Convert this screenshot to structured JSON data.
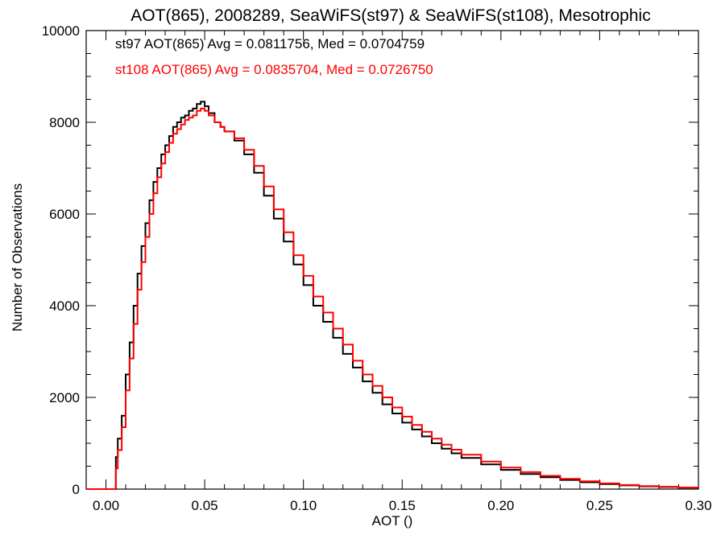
{
  "chart_data": {
    "type": "line",
    "title": "AOT(865), 2008289, SeaWiFS(st97) & SeaWiFS(st108), Mesotrophic",
    "xlabel": "AOT ()",
    "ylabel": "Number of Observations",
    "xlim": [
      -0.01,
      0.3
    ],
    "ylim": [
      0,
      10000
    ],
    "xticks": [
      0.0,
      0.05,
      0.1,
      0.15,
      0.2,
      0.25,
      0.3
    ],
    "xtick_labels": [
      "0.00",
      "0.05",
      "0.10",
      "0.15",
      "0.20",
      "0.25",
      "0.30"
    ],
    "yticks": [
      0,
      2000,
      4000,
      6000,
      8000,
      10000
    ],
    "ytick_labels": [
      "0",
      "2000",
      "4000",
      "6000",
      "8000",
      "10000"
    ],
    "grid": false,
    "legend_position": "top-left",
    "step_style": "histogram",
    "x": [
      -0.01,
      0.004,
      0.005,
      0.006,
      0.008,
      0.01,
      0.012,
      0.014,
      0.016,
      0.018,
      0.02,
      0.022,
      0.024,
      0.026,
      0.028,
      0.03,
      0.032,
      0.034,
      0.036,
      0.038,
      0.04,
      0.042,
      0.044,
      0.046,
      0.048,
      0.05,
      0.052,
      0.055,
      0.058,
      0.06,
      0.065,
      0.07,
      0.075,
      0.08,
      0.085,
      0.09,
      0.095,
      0.1,
      0.105,
      0.11,
      0.115,
      0.12,
      0.125,
      0.13,
      0.135,
      0.14,
      0.145,
      0.15,
      0.155,
      0.16,
      0.165,
      0.17,
      0.175,
      0.18,
      0.19,
      0.2,
      0.21,
      0.22,
      0.23,
      0.24,
      0.25,
      0.26,
      0.27,
      0.28,
      0.29,
      0.3
    ],
    "series": [
      {
        "name": "st97",
        "label": "st97 AOT(865) Avg = 0.0811756, Med = 0.0704759",
        "color": "#000000",
        "values": [
          0,
          0,
          700,
          1100,
          1600,
          2500,
          3200,
          4000,
          4700,
          5300,
          5800,
          6300,
          6700,
          7000,
          7300,
          7500,
          7700,
          7900,
          8000,
          8100,
          8150,
          8250,
          8300,
          8400,
          8450,
          8350,
          8200,
          8000,
          7900,
          7800,
          7600,
          7300,
          6900,
          6400,
          5900,
          5400,
          4900,
          4450,
          4000,
          3650,
          3300,
          2950,
          2650,
          2350,
          2100,
          1850,
          1650,
          1450,
          1300,
          1150,
          1000,
          880,
          780,
          680,
          540,
          420,
          330,
          260,
          200,
          150,
          110,
          80,
          60,
          45,
          30,
          20
        ]
      },
      {
        "name": "st108",
        "label": "st108 AOT(865) Avg = 0.0835704, Med = 0.0726750",
        "color": "#ff0000",
        "values": [
          0,
          0,
          450,
          850,
          1350,
          2150,
          2850,
          3600,
          4350,
          4950,
          5500,
          6000,
          6450,
          6800,
          7100,
          7350,
          7550,
          7750,
          7850,
          7950,
          8050,
          8100,
          8150,
          8250,
          8300,
          8250,
          8150,
          8000,
          7900,
          7800,
          7650,
          7400,
          7050,
          6600,
          6100,
          5600,
          5100,
          4650,
          4200,
          3850,
          3500,
          3150,
          2800,
          2500,
          2250,
          2000,
          1780,
          1580,
          1400,
          1250,
          1100,
          970,
          860,
          750,
          600,
          470,
          370,
          290,
          225,
          170,
          125,
          90,
          65,
          50,
          35,
          22
        ]
      }
    ]
  }
}
